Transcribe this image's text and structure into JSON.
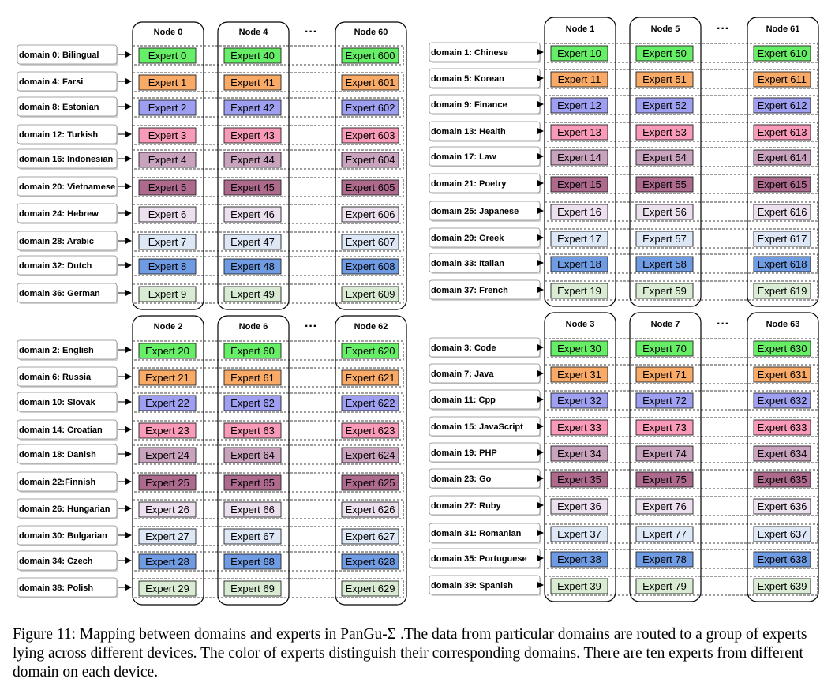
{
  "expert_colors": [
    "#66ee66",
    "#f8aa66",
    "#9f9ff2",
    "#f99ab9",
    "#c9a3bd",
    "#ad6a8d",
    "#ece0ee",
    "#dde7f5",
    "#6f9be3",
    "#d9ecd3"
  ],
  "ellipsis": "···",
  "caption": "Figure 11: Mapping between domains and experts in PanGu-Σ .The data from particular domains are routed to a group of experts lying across different devices. The color of experts distinguish their corresponding domains. There are ten experts from different domain on each device.",
  "groups": [
    {
      "nodes": [
        "Node 0",
        "Node 4",
        "Node 60"
      ],
      "domains": [
        "domain 0: Bilingual",
        "domain 4: Farsi",
        "domain 8: Estonian",
        "domain 12: Turkish",
        "domain 16: Indonesian",
        "domain 20: Vietnamese",
        "domain 24: Hebrew",
        "domain 28: Arabic",
        "domain 32: Dutch",
        "domain 36: German"
      ],
      "experts": [
        [
          "Expert 0",
          "Expert 1",
          "Expert 2",
          "Expert 3",
          "Expert 4",
          "Expert 5",
          "Expert 6",
          "Expert 7",
          "Expert 8",
          "Expert 9"
        ],
        [
          "Expert 40",
          "Expert 41",
          "Expert 42",
          "Expert 43",
          "Expert 44",
          "Expert 45",
          "Expert 46",
          "Expert 47",
          "Expert 48",
          "Expert 49"
        ],
        [
          "Expert 600",
          "Expert 601",
          "Expert 602",
          "Expert 603",
          "Expert 604",
          "Expert 605",
          "Expert 606",
          "Expert 607",
          "Expert 608",
          "Expert 609"
        ]
      ]
    },
    {
      "nodes": [
        "Node 1",
        "Node 5",
        "Node 61"
      ],
      "domains": [
        "domain 1: Chinese",
        "domain 5: Korean",
        "domain 9: Finance",
        "domain 13: Health",
        "domain 17: Law",
        "domain 21: Poetry",
        "domain 25: Japanese",
        "domain 29: Greek",
        "domain 33: Italian",
        "domain 37: French"
      ],
      "experts": [
        [
          "Expert 10",
          "Expert 11",
          "Expert 12",
          "Expert 13",
          "Expert 14",
          "Expert 15",
          "Expert 16",
          "Expert 17",
          "Expert 18",
          "Expert 19"
        ],
        [
          "Expert 50",
          "Expert 51",
          "Expert 52",
          "Expert 53",
          "Expert 54",
          "Expert 55",
          "Expert 56",
          "Expert 57",
          "Expert 58",
          "Expert 59"
        ],
        [
          "Expert 610",
          "Expert 611",
          "Expert 612",
          "Expert 613",
          "Expert 614",
          "Expert 615",
          "Expert 616",
          "Expert 617",
          "Expert 618",
          "Expert 619"
        ]
      ]
    },
    {
      "nodes": [
        "Node 2",
        "Node 6",
        "Node 62"
      ],
      "domains": [
        "domain 2: English",
        "domain 6: Russia",
        "domain 10: Slovak",
        "domain 14: Croatian",
        "domain 18: Danish",
        "domain 22:Finnish",
        "domain 26: Hungarian",
        "domain 30: Bulgarian",
        "domain 34: Czech",
        "domain 38: Polish"
      ],
      "experts": [
        [
          "Expert 20",
          "Expert 21",
          "Expert 22",
          "Expert 23",
          "Expert 24",
          "Expert 25",
          "Expert 26",
          "Expert 27",
          "Expert 28",
          "Expert 29"
        ],
        [
          "Expert 60",
          "Expert 61",
          "Expert 62",
          "Expert 63",
          "Expert 64",
          "Expert 65",
          "Expert 66",
          "Expert 67",
          "Expert 68",
          "Expert 69"
        ],
        [
          "Expert 620",
          "Expert 621",
          "Expert 622",
          "Expert 623",
          "Expert 624",
          "Expert 625",
          "Expert 626",
          "Expert 627",
          "Expert 628",
          "Expert 629"
        ]
      ]
    },
    {
      "nodes": [
        "Node 3",
        "Node 7",
        "Node 63"
      ],
      "domains": [
        "domain 3: Code",
        "domain 7: Java",
        "domain 11: Cpp",
        "domain 15: JavaScript",
        "domain 19: PHP",
        "domain 23: Go",
        "domain 27: Ruby",
        "domain 31: Romanian",
        "domain 35: Portuguese",
        "domain 39: Spanish"
      ],
      "experts": [
        [
          "Expert 30",
          "Expert 31",
          "Expert 32",
          "Expert 33",
          "Expert 34",
          "Expert 35",
          "Expert 36",
          "Expert 37",
          "Expert 38",
          "Expert 39"
        ],
        [
          "Expert 70",
          "Expert 71",
          "Expert 72",
          "Expert 73",
          "Expert 74",
          "Expert 75",
          "Expert 76",
          "Expert 77",
          "Expert 78",
          "Expert 79"
        ],
        [
          "Expert 630",
          "Expert 631",
          "Expert 632",
          "Expert 633",
          "Expert 634",
          "Expert 635",
          "Expert 636",
          "Expert 637",
          "Expert 638",
          "Expert 639"
        ]
      ]
    }
  ]
}
